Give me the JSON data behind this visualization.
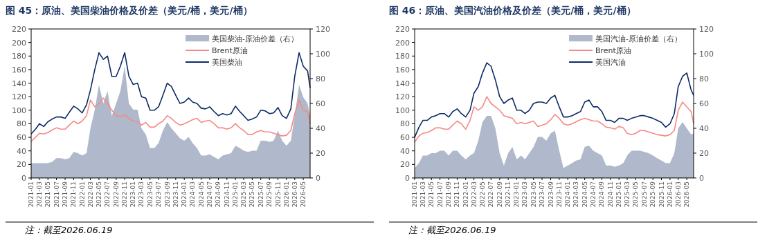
{
  "chart_data": [
    {
      "type": "line",
      "title": "图 45：原油、美国柴油价格及价差（美元/桶，美元/桶）",
      "annotations": [
        "注：截至2026.06.19"
      ],
      "x": [
        "2021-01-01",
        "2021-02-01",
        "2021-03-01",
        "2021-04-01",
        "2021-05-01",
        "2021-06-01",
        "2021-07-01",
        "2021-08-01",
        "2021-09-01",
        "2021-10-01",
        "2021-11-01",
        "2021-12-01",
        "2022-01-01",
        "2022-02-01",
        "2022-03-01",
        "2022-04-01",
        "2022-05-01",
        "2022-06-01",
        "2022-07-01",
        "2022-08-01",
        "2022-09-01",
        "2022-10-01",
        "2022-11-01",
        "2022-12-01",
        "2023-01-01",
        "2023-02-01",
        "2023-03-01",
        "2023-04-01",
        "2023-05-01",
        "2023-06-01",
        "2023-07-01",
        "2023-08-01",
        "2023-09-01",
        "2023-10-01",
        "2023-11-01",
        "2023-12-01",
        "2024-01-01",
        "2024-02-01",
        "2024-03-01",
        "2024-04-01",
        "2024-05-01",
        "2024-06-01",
        "2024-07-01",
        "2024-08-01",
        "2024-09-01",
        "2024-10-01",
        "2024-11-01",
        "2024-12-01",
        "2025-01-01",
        "2025-02-01",
        "2025-03-01",
        "2025-04-01",
        "2025-05-01",
        "2025-06-01",
        "2025-07-01",
        "2025-08-01",
        "2025-09-01",
        "2025-10-01",
        "2025-11-01",
        "2025-12-01",
        "2026-01-01",
        "2026-02-01",
        "2026-03-01",
        "2026-04-01",
        "2026-05-01",
        "2026-06-01",
        "2026-06-19"
      ],
      "series": [
        {
          "name": "美国柴油-原油价差（右）",
          "type": "area",
          "axis": "y2",
          "color": "#b0b9cb",
          "values": [
            12,
            12,
            12,
            12,
            12,
            13,
            16,
            16,
            15,
            16,
            21,
            20,
            18,
            20,
            40,
            55,
            75,
            60,
            70,
            50,
            60,
            70,
            90,
            60,
            55,
            55,
            40,
            35,
            24,
            24,
            28,
            38,
            45,
            40,
            36,
            32,
            30,
            33,
            28,
            24,
            18,
            18,
            19,
            17,
            15,
            18,
            19,
            20,
            26,
            24,
            22,
            21,
            22,
            22,
            30,
            30,
            29,
            30,
            38,
            30,
            26,
            30,
            50,
            75,
            65,
            60,
            50
          ]
        },
        {
          "name": "Brent原油",
          "type": "line",
          "color": "#f48a85",
          "values": [
            54,
            60,
            66,
            65,
            67,
            71,
            74,
            72,
            72,
            78,
            84,
            80,
            84,
            92,
            115,
            105,
            110,
            118,
            110,
            100,
            92,
            90,
            93,
            88,
            84,
            83,
            78,
            82,
            75,
            75,
            80,
            84,
            92,
            88,
            82,
            78,
            80,
            83,
            86,
            88,
            82,
            84,
            85,
            80,
            74,
            74,
            72,
            74,
            80,
            74,
            70,
            64,
            64,
            68,
            70,
            68,
            68,
            66,
            64,
            62,
            63,
            70,
            95,
            115,
            100,
            98,
            80
          ]
        },
        {
          "name": "美国柴油",
          "type": "line",
          "color": "#0c2a66",
          "values": [
            65,
            72,
            80,
            76,
            83,
            87,
            90,
            90,
            88,
            97,
            106,
            102,
            96,
            108,
            130,
            160,
            185,
            175,
            180,
            150,
            150,
            165,
            185,
            150,
            138,
            140,
            120,
            118,
            100,
            100,
            105,
            122,
            140,
            135,
            122,
            110,
            112,
            118,
            112,
            110,
            103,
            102,
            105,
            98,
            92,
            95,
            93,
            95,
            106,
            98,
            92,
            85,
            87,
            90,
            100,
            99,
            95,
            96,
            104,
            92,
            88,
            102,
            150,
            185,
            165,
            158,
            133
          ]
        }
      ],
      "xlim": [
        "2021-01-01",
        "2026-06-19"
      ],
      "xticks": [
        "2021-01",
        "2021-03",
        "2021-05",
        "2021-07",
        "2021-09",
        "2021-11",
        "2022-01",
        "2022-03",
        "2022-05",
        "2022-07",
        "2022-09",
        "2022-11",
        "2023-01",
        "2023-03",
        "2023-05",
        "2023-07",
        "2023-09",
        "2023-11",
        "2024-01",
        "2024-03",
        "2024-05",
        "2024-07",
        "2024-09",
        "2024-11",
        "2025-01",
        "2025-03",
        "2025-05",
        "2025-07",
        "2025-09",
        "2025-11",
        "2026-01",
        "2026-03",
        "2026-05"
      ],
      "ylim": [
        0,
        220
      ],
      "yticks": [
        0,
        20,
        40,
        60,
        80,
        100,
        120,
        140,
        160,
        180,
        200,
        220
      ],
      "y2lim": [
        0,
        120
      ],
      "y2ticks": [
        0,
        20,
        40,
        60,
        80,
        100,
        120
      ],
      "legend": "top right"
    },
    {
      "type": "line",
      "title": "图 46：原油、美国汽油价格及价差（美元/桶，美元/桶）",
      "annotations": [
        "注：截至2026.06.19"
      ],
      "x": [
        "2021-01-01",
        "2021-02-01",
        "2021-03-01",
        "2021-04-01",
        "2021-05-01",
        "2021-06-01",
        "2021-07-01",
        "2021-08-01",
        "2021-09-01",
        "2021-10-01",
        "2021-11-01",
        "2021-12-01",
        "2022-01-01",
        "2022-02-01",
        "2022-03-01",
        "2022-04-01",
        "2022-05-01",
        "2022-06-01",
        "2022-07-01",
        "2022-08-01",
        "2022-09-01",
        "2022-10-01",
        "2022-11-01",
        "2022-12-01",
        "2023-01-01",
        "2023-02-01",
        "2023-03-01",
        "2023-04-01",
        "2023-05-01",
        "2023-06-01",
        "2023-07-01",
        "2023-08-01",
        "2023-09-01",
        "2023-10-01",
        "2023-11-01",
        "2023-12-01",
        "2024-01-01",
        "2024-02-01",
        "2024-03-01",
        "2024-04-01",
        "2024-05-01",
        "2024-06-01",
        "2024-07-01",
        "2024-08-01",
        "2024-09-01",
        "2024-10-01",
        "2024-11-01",
        "2024-12-01",
        "2025-01-01",
        "2025-02-01",
        "2025-03-01",
        "2025-04-01",
        "2025-05-01",
        "2025-06-01",
        "2025-07-01",
        "2025-08-01",
        "2025-09-01",
        "2025-10-01",
        "2025-11-01",
        "2025-12-01",
        "2026-01-01",
        "2026-02-01",
        "2026-03-01",
        "2026-04-01",
        "2026-05-01",
        "2026-06-01",
        "2026-06-19"
      ],
      "series": [
        {
          "name": "美国汽油-原油价差（右）",
          "type": "area",
          "axis": "y2",
          "color": "#b0b9cb",
          "values": [
            8,
            12,
            18,
            18,
            20,
            20,
            22,
            22,
            18,
            22,
            22,
            18,
            15,
            18,
            20,
            30,
            45,
            50,
            50,
            40,
            20,
            10,
            20,
            25,
            15,
            18,
            15,
            20,
            25,
            33,
            33,
            30,
            36,
            38,
            22,
            8,
            10,
            12,
            14,
            15,
            25,
            26,
            22,
            20,
            18,
            10,
            10,
            9,
            10,
            12,
            18,
            22,
            22,
            22,
            21,
            20,
            18,
            16,
            14,
            12,
            12,
            20,
            40,
            45,
            40,
            35,
            36
          ]
        },
        {
          "name": "Brent原油",
          "type": "line",
          "color": "#f48a85",
          "values": [
            53,
            62,
            66,
            67,
            70,
            74,
            74,
            72,
            72,
            78,
            84,
            80,
            72,
            85,
            105,
            100,
            105,
            120,
            110,
            105,
            100,
            92,
            90,
            88,
            80,
            82,
            80,
            82,
            84,
            76,
            78,
            80,
            86,
            94,
            88,
            80,
            78,
            80,
            83,
            86,
            88,
            86,
            84,
            84,
            80,
            75,
            74,
            72,
            76,
            74,
            66,
            64,
            66,
            70,
            70,
            68,
            66,
            64,
            63,
            62,
            64,
            70,
            100,
            112,
            105,
            98,
            80
          ]
        },
        {
          "name": "美国汽油",
          "type": "line",
          "color": "#0c2a66",
          "values": [
            60,
            75,
            85,
            85,
            90,
            92,
            95,
            95,
            90,
            98,
            102,
            95,
            90,
            100,
            125,
            135,
            155,
            170,
            165,
            145,
            120,
            110,
            115,
            118,
            100,
            100,
            95,
            100,
            110,
            112,
            112,
            110,
            118,
            122,
            105,
            90,
            90,
            92,
            95,
            98,
            112,
            115,
            105,
            105,
            98,
            85,
            85,
            82,
            88,
            88,
            85,
            88,
            90,
            92,
            92,
            90,
            88,
            85,
            82,
            75,
            80,
            95,
            135,
            150,
            155,
            130,
            122
          ]
        }
      ],
      "xlim": [
        "2021-01-01",
        "2026-06-19"
      ],
      "xticks": [
        "2021-01",
        "2021-03",
        "2021-05",
        "2021-07",
        "2021-09",
        "2021-11",
        "2022-01",
        "2022-03",
        "2022-05",
        "2022-07",
        "2022-09",
        "2022-11",
        "2023-01",
        "2023-03",
        "2023-05",
        "2023-07",
        "2023-09",
        "2023-11",
        "2024-01",
        "2024-03",
        "2024-05",
        "2024-07",
        "2024-09",
        "2024-11",
        "2025-01",
        "2025-03",
        "2025-05",
        "2025-07",
        "2025-09",
        "2025-11",
        "2026-01",
        "2026-03",
        "2026-05"
      ],
      "ylim": [
        0,
        220
      ],
      "yticks": [
        0,
        20,
        40,
        60,
        80,
        100,
        120,
        140,
        160,
        180,
        200,
        220
      ],
      "y2lim": [
        0,
        120
      ],
      "y2ticks": [
        0,
        20,
        40,
        60,
        80,
        100,
        120
      ],
      "legend": "top right"
    }
  ]
}
